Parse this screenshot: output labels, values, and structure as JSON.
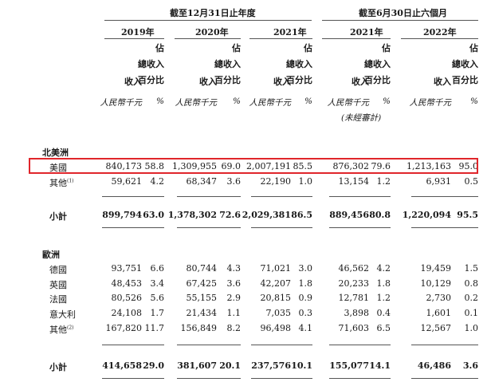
{
  "header": {
    "period_a": "截至12月31日止年度",
    "period_b": "截至6月30日止六個月",
    "years": [
      "2019年",
      "2020年",
      "2021年",
      "2021年",
      "2022年"
    ],
    "col_revenue": "收入",
    "col_pct": [
      "佔",
      "總收入",
      "百分比"
    ],
    "unit_revenue": "人民幣千元",
    "unit_pct": "%",
    "unaudited": "(未經審計)"
  },
  "sections": [
    {
      "title": "北美洲",
      "rows": [
        {
          "label": "美國",
          "sup": "",
          "values": [
            "840,173",
            "58.8",
            "1,309,955",
            "69.0",
            "2,007,191",
            "85.5",
            "876,302",
            "79.6",
            "1,213,163",
            "95.0"
          ]
        },
        {
          "label": "其他",
          "sup": "(1)",
          "values": [
            "59,621",
            "4.2",
            "68,347",
            "3.6",
            "22,190",
            "1.0",
            "13,154",
            "1.2",
            "6,931",
            "0.5"
          ]
        }
      ],
      "subtotal": {
        "label": "小計",
        "values": [
          "899,794",
          "63.0",
          "1,378,302",
          "72.6",
          "2,029,381",
          "86.5",
          "889,456",
          "80.8",
          "1,220,094",
          "95.5"
        ]
      }
    },
    {
      "title": "歐洲",
      "rows": [
        {
          "label": "德國",
          "sup": "",
          "values": [
            "93,751",
            "6.6",
            "80,744",
            "4.3",
            "71,021",
            "3.0",
            "46,562",
            "4.2",
            "19,459",
            "1.5"
          ]
        },
        {
          "label": "英國",
          "sup": "",
          "values": [
            "48,453",
            "3.4",
            "67,425",
            "3.6",
            "42,207",
            "1.8",
            "20,233",
            "1.8",
            "10,129",
            "0.8"
          ]
        },
        {
          "label": "法國",
          "sup": "",
          "values": [
            "80,526",
            "5.6",
            "55,155",
            "2.9",
            "20,815",
            "0.9",
            "12,781",
            "1.2",
            "2,730",
            "0.2"
          ]
        },
        {
          "label": "意大利",
          "sup": "",
          "values": [
            "24,108",
            "1.7",
            "21,434",
            "1.1",
            "7,035",
            "0.3",
            "3,898",
            "0.4",
            "1,601",
            "0.1"
          ]
        },
        {
          "label": "其他",
          "sup": "(2)",
          "values": [
            "167,820",
            "11.7",
            "156,849",
            "8.2",
            "96,498",
            "4.1",
            "71,603",
            "6.5",
            "12,567",
            "1.0"
          ]
        }
      ],
      "subtotal": {
        "label": "小計",
        "values": [
          "414,658",
          "29.0",
          "381,607",
          "20.1",
          "237,576",
          "10.1",
          "155,077",
          "14.1",
          "46,486",
          "3.6"
        ]
      }
    }
  ]
}
